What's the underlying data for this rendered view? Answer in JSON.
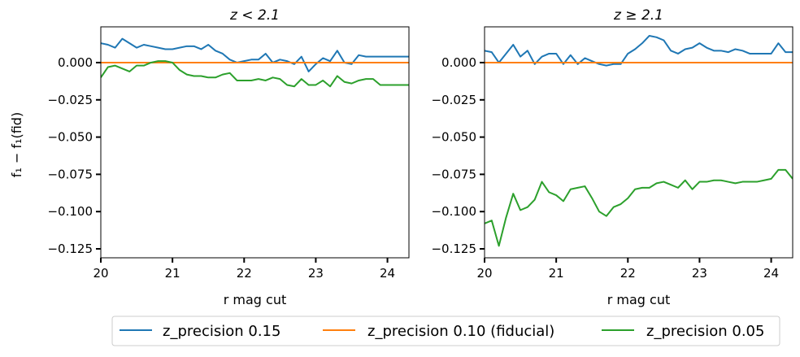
{
  "chart_data": [
    {
      "type": "line",
      "title": "z < 2.1",
      "xlabel": "r mag cut",
      "ylabel": "f₁ − f₁(fid)",
      "xlim": [
        20.0,
        24.3
      ],
      "ylim": [
        -0.131,
        0.024
      ],
      "xticks": [
        20,
        21,
        22,
        23,
        24
      ],
      "yticks": [
        0.0,
        -0.025,
        -0.05,
        -0.075,
        -0.1,
        -0.125
      ],
      "ytick_labels": [
        "0.000",
        "−0.025",
        "−0.050",
        "−0.075",
        "−0.100",
        "−0.125"
      ],
      "grid": false,
      "series": [
        {
          "name": "z_precision 0.15",
          "color": "#1f77b4",
          "x": [
            20.0,
            20.1,
            20.2,
            20.3,
            20.4,
            20.5,
            20.6,
            20.7,
            20.8,
            20.9,
            21.0,
            21.1,
            21.2,
            21.3,
            21.4,
            21.5,
            21.6,
            21.7,
            21.8,
            21.9,
            22.0,
            22.1,
            22.2,
            22.3,
            22.4,
            22.5,
            22.6,
            22.7,
            22.8,
            22.9,
            23.0,
            23.1,
            23.2,
            23.3,
            23.4,
            23.5,
            23.6,
            23.7,
            23.8,
            23.9,
            24.0,
            24.1,
            24.2,
            24.3
          ],
          "values": [
            0.013,
            0.012,
            0.01,
            0.016,
            0.013,
            0.01,
            0.012,
            0.011,
            0.01,
            0.009,
            0.009,
            0.01,
            0.011,
            0.011,
            0.009,
            0.012,
            0.008,
            0.006,
            0.002,
            0.0,
            0.001,
            0.002,
            0.002,
            0.006,
            0.0,
            0.002,
            0.001,
            -0.001,
            0.004,
            -0.006,
            -0.001,
            0.003,
            0.001,
            0.008,
            0.0,
            -0.001,
            0.005,
            0.004,
            0.004,
            0.004,
            0.004,
            0.004,
            0.004,
            0.004
          ]
        },
        {
          "name": "z_precision 0.10 (fiducial)",
          "color": "#ff7f0e",
          "x": [
            20.0,
            24.3
          ],
          "values": [
            0.0,
            0.0
          ]
        },
        {
          "name": "z_precision 0.05",
          "color": "#2ca02c",
          "x": [
            20.0,
            20.1,
            20.2,
            20.3,
            20.4,
            20.5,
            20.6,
            20.7,
            20.8,
            20.9,
            21.0,
            21.1,
            21.2,
            21.3,
            21.4,
            21.5,
            21.6,
            21.7,
            21.8,
            21.9,
            22.0,
            22.1,
            22.2,
            22.3,
            22.4,
            22.5,
            22.6,
            22.7,
            22.8,
            22.9,
            23.0,
            23.1,
            23.2,
            23.3,
            23.4,
            23.5,
            23.6,
            23.7,
            23.8,
            23.9,
            24.0,
            24.1,
            24.2,
            24.3
          ],
          "values": [
            -0.01,
            -0.003,
            -0.002,
            -0.004,
            -0.006,
            -0.002,
            -0.002,
            0.0,
            0.001,
            0.001,
            0.0,
            -0.005,
            -0.008,
            -0.009,
            -0.009,
            -0.01,
            -0.01,
            -0.008,
            -0.007,
            -0.012,
            -0.012,
            -0.012,
            -0.011,
            -0.012,
            -0.01,
            -0.011,
            -0.015,
            -0.016,
            -0.011,
            -0.015,
            -0.015,
            -0.012,
            -0.016,
            -0.009,
            -0.013,
            -0.014,
            -0.012,
            -0.011,
            -0.011,
            -0.015,
            -0.015,
            -0.015,
            -0.015,
            -0.015
          ]
        }
      ]
    },
    {
      "type": "line",
      "title": "z ≥ 2.1",
      "xlabel": "r mag cut",
      "ylabel": "",
      "xlim": [
        20.0,
        24.3
      ],
      "ylim": [
        -0.131,
        0.024
      ],
      "xticks": [
        20,
        21,
        22,
        23,
        24
      ],
      "yticks": [
        0.0,
        -0.025,
        -0.05,
        -0.075,
        -0.1,
        -0.125
      ],
      "ytick_labels": [
        "0.000",
        "−0.025",
        "−0.050",
        "−0.075",
        "−0.100",
        "−0.125"
      ],
      "grid": false,
      "series": [
        {
          "name": "z_precision 0.15",
          "color": "#1f77b4",
          "x": [
            20.0,
            20.1,
            20.2,
            20.3,
            20.4,
            20.5,
            20.6,
            20.7,
            20.8,
            20.9,
            21.0,
            21.1,
            21.2,
            21.3,
            21.4,
            21.5,
            21.6,
            21.7,
            21.8,
            21.9,
            22.0,
            22.1,
            22.2,
            22.3,
            22.4,
            22.5,
            22.6,
            22.7,
            22.8,
            22.9,
            23.0,
            23.1,
            23.2,
            23.3,
            23.4,
            23.5,
            23.6,
            23.7,
            23.8,
            23.9,
            24.0,
            24.1,
            24.2,
            24.3
          ],
          "values": [
            0.008,
            0.007,
            0.0,
            0.006,
            0.012,
            0.004,
            0.008,
            -0.001,
            0.004,
            0.006,
            0.006,
            -0.001,
            0.005,
            -0.001,
            0.003,
            0.001,
            -0.001,
            -0.002,
            -0.001,
            -0.001,
            0.006,
            0.009,
            0.013,
            0.018,
            0.017,
            0.015,
            0.008,
            0.006,
            0.009,
            0.01,
            0.013,
            0.01,
            0.008,
            0.008,
            0.007,
            0.009,
            0.008,
            0.006,
            0.006,
            0.006,
            0.006,
            0.013,
            0.007,
            0.007
          ]
        },
        {
          "name": "z_precision 0.10 (fiducial)",
          "color": "#ff7f0e",
          "x": [
            20.0,
            24.3
          ],
          "values": [
            0.0,
            0.0
          ]
        },
        {
          "name": "z_precision 0.05",
          "color": "#2ca02c",
          "x": [
            20.0,
            20.1,
            20.2,
            20.3,
            20.4,
            20.5,
            20.6,
            20.7,
            20.8,
            20.9,
            21.0,
            21.1,
            21.2,
            21.3,
            21.4,
            21.5,
            21.6,
            21.7,
            21.8,
            21.9,
            22.0,
            22.1,
            22.2,
            22.3,
            22.4,
            22.5,
            22.6,
            22.7,
            22.8,
            22.9,
            23.0,
            23.1,
            23.2,
            23.3,
            23.4,
            23.5,
            23.6,
            23.7,
            23.8,
            23.9,
            24.0,
            24.1,
            24.2,
            24.3
          ],
          "values": [
            -0.108,
            -0.106,
            -0.123,
            -0.104,
            -0.088,
            -0.099,
            -0.097,
            -0.092,
            -0.08,
            -0.087,
            -0.089,
            -0.093,
            -0.085,
            -0.084,
            -0.083,
            -0.091,
            -0.1,
            -0.103,
            -0.097,
            -0.095,
            -0.091,
            -0.085,
            -0.084,
            -0.084,
            -0.081,
            -0.08,
            -0.082,
            -0.084,
            -0.079,
            -0.085,
            -0.08,
            -0.08,
            -0.079,
            -0.079,
            -0.08,
            -0.081,
            -0.08,
            -0.08,
            -0.08,
            -0.079,
            -0.078,
            -0.072,
            -0.072,
            -0.078
          ]
        }
      ]
    }
  ],
  "legend": {
    "placement": "bottom",
    "entries": [
      {
        "label": "z_precision 0.15",
        "color": "#1f77b4"
      },
      {
        "label": "z_precision 0.10 (fiducial)",
        "color": "#ff7f0e"
      },
      {
        "label": "z_precision 0.05",
        "color": "#2ca02c"
      }
    ]
  }
}
